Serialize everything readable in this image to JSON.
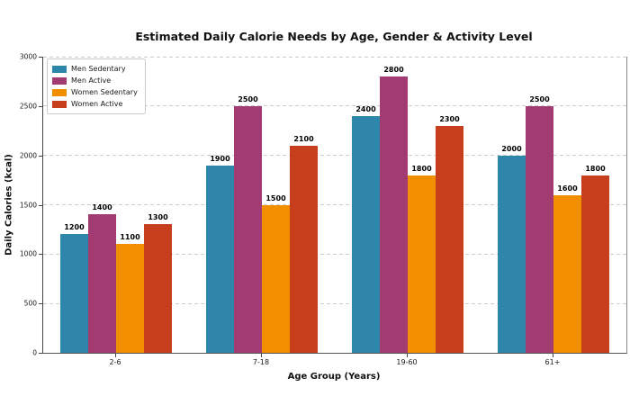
{
  "chart_data": {
    "type": "bar",
    "title": "Estimated Daily Calorie Needs by Age, Gender & Activity Level",
    "xlabel": "Age Group (Years)",
    "ylabel": "Daily Calories (kcal)",
    "categories": [
      "2-6",
      "7-18",
      "19-60",
      "61+"
    ],
    "series": [
      {
        "name": "Men Sedentary",
        "color": "#2E86AB",
        "values": [
          1200,
          1900,
          2400,
          2000
        ]
      },
      {
        "name": "Men Active",
        "color": "#A23B72",
        "values": [
          1400,
          2500,
          2800,
          2500
        ]
      },
      {
        "name": "Women Sedentary",
        "color": "#F18F01",
        "values": [
          1100,
          1500,
          1800,
          1600
        ]
      },
      {
        "name": "Women Active",
        "color": "#C73E1D",
        "values": [
          1300,
          2100,
          2300,
          1800
        ]
      }
    ],
    "ylim": [
      0,
      3000
    ],
    "yticks": [
      0,
      500,
      1000,
      1500,
      2000,
      2500,
      3000
    ],
    "grid": "horizontal-dashed",
    "legend_position": "upper-left",
    "bar_value_labels": true
  },
  "colors": {
    "grid": "#cccccc",
    "spine": "#555555",
    "text": "#111111",
    "legend_border": "#cccccc",
    "background": "#ffffff"
  }
}
